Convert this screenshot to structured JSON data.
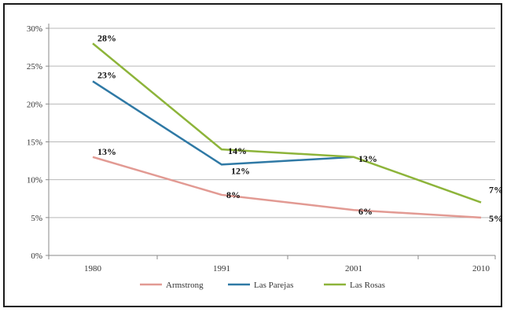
{
  "chart_data": {
    "type": "line",
    "title": "",
    "xlabel": "",
    "ylabel": "",
    "categories": [
      "1980",
      "1991",
      "2001",
      "2010"
    ],
    "ylim": [
      0,
      30
    ],
    "yticks": [
      0,
      5,
      10,
      15,
      20,
      25,
      30
    ],
    "ytick_labels": [
      "0%",
      "5%",
      "10%",
      "15%",
      "20%",
      "25%",
      "30%"
    ],
    "grid": true,
    "legend_position": "bottom",
    "series": [
      {
        "name": "Armstrong",
        "color": "#e29a93",
        "values": [
          13,
          8,
          6,
          5
        ],
        "labels": [
          "13%",
          "8%",
          "6%",
          "5%"
        ]
      },
      {
        "name": "Las Parejas",
        "color": "#2f79a5",
        "values": [
          23,
          12,
          13,
          null
        ],
        "labels": [
          "23%",
          "12%",
          "",
          ""
        ]
      },
      {
        "name": "Las Rosas",
        "color": "#8db43a",
        "values": [
          28,
          14,
          13,
          7
        ],
        "labels": [
          "28%",
          "14%",
          "13%",
          "7%"
        ]
      }
    ]
  }
}
